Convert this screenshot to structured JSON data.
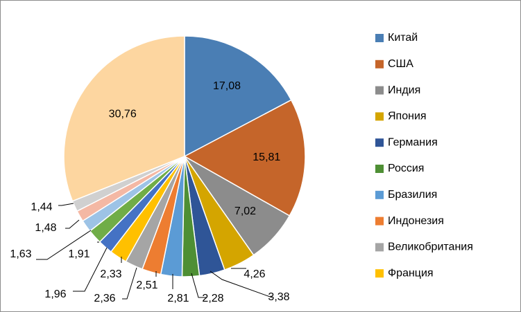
{
  "chart_data": {
    "type": "pie",
    "title": "",
    "legend_position": "right",
    "categories": [
      "Китай",
      "США",
      "Индия",
      "Япония",
      "Германия",
      "Россия",
      "Бразилия",
      "Индонезия",
      "Великобритания",
      "Франция",
      "",
      "",
      "",
      "",
      "",
      ""
    ],
    "values": [
      17.08,
      15.81,
      7.02,
      4.26,
      3.38,
      2.28,
      2.81,
      2.51,
      2.36,
      2.33,
      1.96,
      1.91,
      1.63,
      1.48,
      1.44,
      30.76
    ],
    "labels": [
      "17,08",
      "15,81",
      "7,02",
      "4,26",
      "3,38",
      "2,28",
      "2,81",
      "2,51",
      "2,36",
      "2,33",
      "1,96",
      "1,91",
      "1,63",
      "1,48",
      "1,44",
      "30,76"
    ],
    "colors": [
      "#4a7eb4",
      "#c5652a",
      "#8c8c8c",
      "#d4a500",
      "#2f5597",
      "#4e8f34",
      "#5b9bd5",
      "#ed7d31",
      "#a5a5a5",
      "#ffc000",
      "#4472c4",
      "#70ad47",
      "#9dc3e6",
      "#f4b8a4",
      "#d0d0d0",
      "#fdd6a0"
    ],
    "legend": [
      "Китай",
      "США",
      "Индия",
      "Япония",
      "Германия",
      "Россия",
      "Бразилия",
      "Индонезия",
      "Великобритания",
      "Франция"
    ]
  }
}
